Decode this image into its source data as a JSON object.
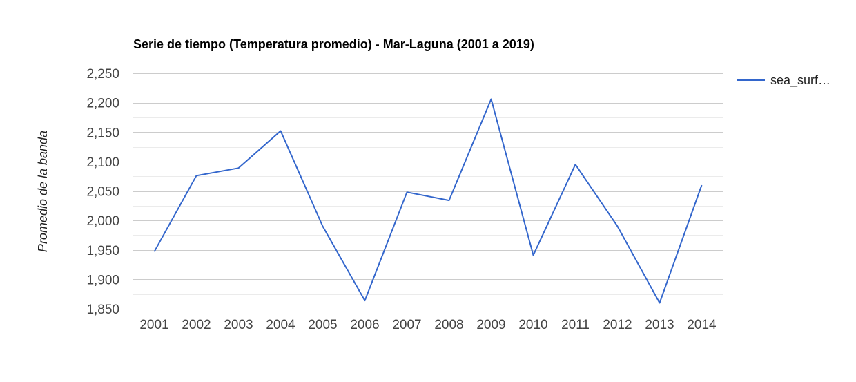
{
  "chart_data": {
    "type": "line",
    "title": "Serie de tiempo (Temperatura promedio) - Mar-Laguna (2001 a 2019)",
    "xlabel": "",
    "ylabel": "Promedio de la banda",
    "ylim": [
      1850,
      2250
    ],
    "yticks": [
      1850,
      1900,
      1950,
      2000,
      2050,
      2100,
      2150,
      2200,
      2250
    ],
    "ytick_labels": [
      "1,850",
      "1,900",
      "1,950",
      "2,000",
      "2,050",
      "2,100",
      "2,150",
      "2,200",
      "2,250"
    ],
    "categories": [
      "2001",
      "2002",
      "2003",
      "2004",
      "2005",
      "2006",
      "2007",
      "2008",
      "2009",
      "2010",
      "2011",
      "2012",
      "2013",
      "2014"
    ],
    "series": [
      {
        "name": "sea_surf…",
        "color": "#3366cc",
        "values": [
          1947,
          2076,
          2089,
          2152,
          1990,
          1864,
          2048,
          2034,
          2206,
          1941,
          2095,
          1990,
          1860,
          2060
        ]
      }
    ],
    "grid": true,
    "minor_grid": true,
    "legend": "right"
  }
}
